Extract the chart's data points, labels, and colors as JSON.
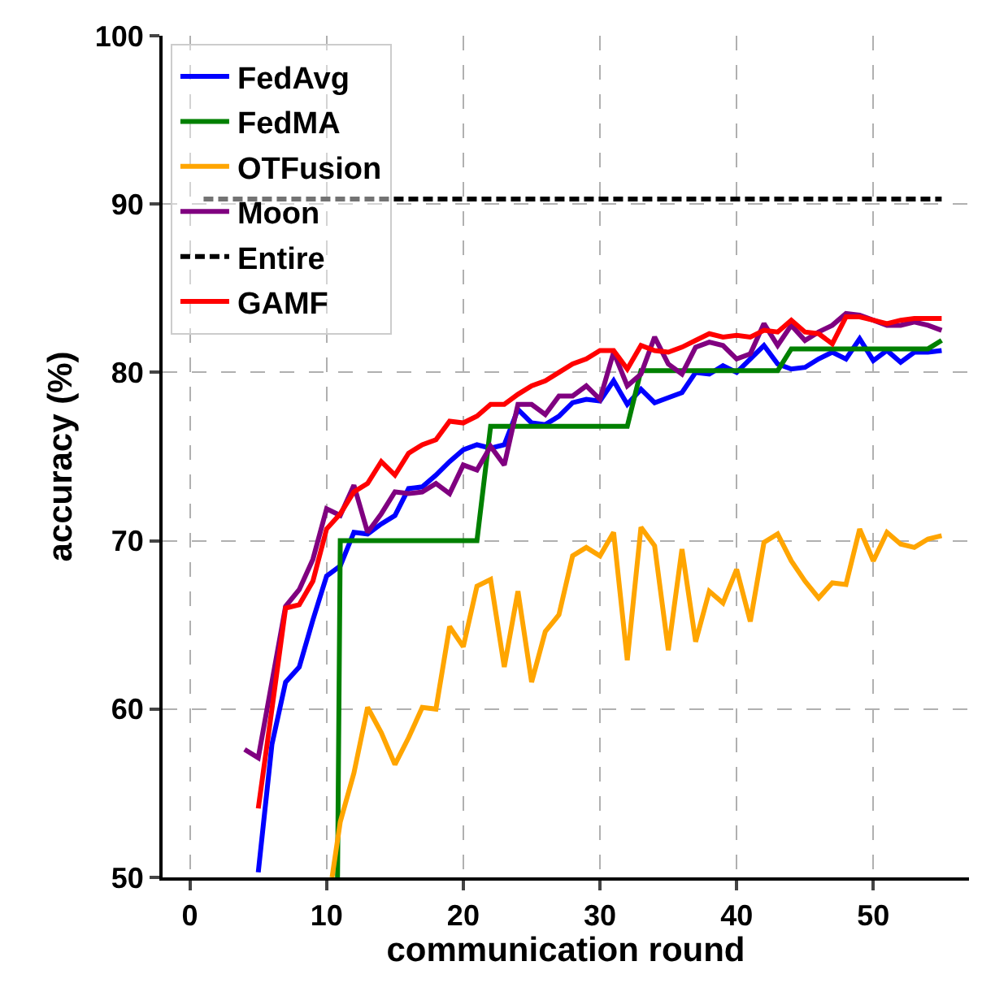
{
  "chart_data": {
    "type": "line",
    "xlabel": "communication round",
    "ylabel": "accuracy (%)",
    "xlim": [
      -2,
      57
    ],
    "xticks": [
      0,
      10,
      20,
      30,
      40,
      50
    ],
    "ylim": [
      50,
      100
    ],
    "yticks": [
      50,
      60,
      70,
      80,
      90,
      100
    ],
    "grid": true,
    "legend": "top left",
    "line_style": "solid",
    "marker": "none",
    "series": [
      {
        "name": "FedAvg",
        "color": "#0000ff",
        "x": [
          5,
          6,
          7,
          8,
          9,
          10,
          11,
          12,
          13,
          14,
          15,
          16,
          17,
          18,
          19,
          20,
          21,
          22,
          23,
          24,
          25,
          26,
          27,
          28,
          29,
          30,
          31,
          32,
          33,
          34,
          35,
          36,
          37,
          38,
          39,
          40,
          41,
          42,
          43,
          44,
          45,
          46,
          47,
          48,
          49,
          50,
          51,
          52,
          53,
          54,
          55
        ],
        "values": [
          50.3,
          57.9,
          61.6,
          62.5,
          65.3,
          67.9,
          68.5,
          70.5,
          70.4,
          71,
          71.5,
          73.1,
          73.2,
          73.9,
          74.7,
          75.4,
          75.7,
          75.5,
          75.7,
          77.8,
          77,
          76.9,
          77.4,
          78.2,
          78.4,
          78.3,
          79.5,
          78.1,
          79,
          78.2,
          78.5,
          78.8,
          80,
          79.9,
          80.4,
          80,
          80.8,
          81.6,
          80.5,
          80.2,
          80.3,
          80.8,
          81.2,
          80.8,
          82,
          80.7,
          81.3,
          80.6,
          81.2,
          81.2,
          81.3
        ]
      },
      {
        "name": "FedMA",
        "color": "#008000",
        "x": [
          10.8,
          11,
          21,
          22,
          32,
          33,
          43,
          44,
          54,
          55
        ],
        "values": [
          50,
          70,
          70,
          76.8,
          76.8,
          80.1,
          80.1,
          81.4,
          81.4,
          81.9
        ]
      },
      {
        "name": "OTFusion",
        "color": "#ffa500",
        "x": [
          10.4,
          11,
          12,
          13,
          14,
          15,
          16,
          17,
          18,
          19,
          20,
          21,
          22,
          23,
          24,
          25,
          26,
          27,
          28,
          29,
          30,
          31,
          32,
          33,
          34,
          35,
          36,
          37,
          38,
          39,
          40,
          41,
          42,
          43,
          44,
          45,
          46,
          47,
          48,
          49,
          50,
          51,
          52,
          53,
          54,
          55
        ],
        "values": [
          50,
          53.3,
          56.2,
          60.1,
          58.6,
          56.7,
          58.3,
          60.1,
          60,
          64.9,
          63.7,
          67.3,
          67.7,
          62.5,
          67,
          61.6,
          64.6,
          65.6,
          69.1,
          69.6,
          69.1,
          70.5,
          62.9,
          70.8,
          69.7,
          63.5,
          69.5,
          64,
          67,
          66.3,
          68.3,
          65.2,
          69.9,
          70.4,
          68.8,
          67.6,
          66.6,
          67.5,
          67.4,
          70.7,
          68.8,
          70.5,
          69.8,
          69.6,
          70.1,
          70.3
        ]
      },
      {
        "name": "Moon",
        "color": "#800080",
        "x": [
          4,
          5,
          6,
          7,
          8,
          9,
          10,
          11,
          12,
          13,
          14,
          15,
          16,
          17,
          18,
          19,
          20,
          21,
          22,
          23,
          24,
          25,
          26,
          27,
          28,
          29,
          30,
          31,
          32,
          33,
          34,
          35,
          36,
          37,
          38,
          39,
          40,
          41,
          42,
          43,
          44,
          45,
          46,
          47,
          48,
          49,
          50,
          51,
          52,
          53,
          54,
          55
        ],
        "values": [
          57.6,
          57.1,
          61.6,
          66.1,
          67.1,
          68.9,
          71.9,
          71.5,
          73.3,
          70.5,
          71.6,
          72.9,
          72.8,
          72.9,
          73.4,
          72.8,
          74.5,
          74.2,
          75.6,
          74.5,
          78.1,
          78.1,
          77.5,
          78.6,
          78.6,
          79.2,
          78.4,
          81.2,
          79.2,
          79.9,
          82.1,
          80.5,
          79.9,
          81.5,
          81.8,
          81.6,
          80.8,
          81.1,
          82.9,
          81.6,
          82.8,
          81.9,
          82.4,
          82.8,
          83.5,
          83.4,
          83.1,
          82.8,
          82.8,
          83,
          82.8,
          82.5
        ]
      },
      {
        "name": "Entire",
        "color": "#000000",
        "line_style": "dashed",
        "x": [
          1,
          55
        ],
        "values": [
          90.3,
          90.3
        ]
      },
      {
        "name": "GAMF",
        "color": "#ff0000",
        "x": [
          5,
          6,
          7,
          8,
          9,
          10,
          11,
          12,
          13,
          14,
          15,
          16,
          17,
          18,
          19,
          20,
          21,
          22,
          23,
          24,
          25,
          26,
          27,
          28,
          29,
          30,
          31,
          32,
          33,
          34,
          35,
          36,
          37,
          38,
          39,
          40,
          41,
          42,
          43,
          44,
          45,
          46,
          47,
          48,
          49,
          50,
          51,
          52,
          53,
          54,
          55
        ],
        "values": [
          54.1,
          60,
          66,
          66.2,
          67.6,
          70.7,
          71.6,
          72.9,
          73.4,
          74.7,
          73.9,
          75.2,
          75.7,
          76,
          77.1,
          77,
          77.4,
          78.1,
          78.1,
          78.7,
          79.2,
          79.5,
          80,
          80.5,
          80.8,
          81.3,
          81.3,
          80.2,
          81.6,
          81.3,
          81.2,
          81.5,
          81.9,
          82.3,
          82.1,
          82.2,
          82.1,
          82.5,
          82.4,
          83.1,
          82.4,
          82.3,
          81.7,
          83.3,
          83.3,
          83.1,
          82.9,
          83.1,
          83.2,
          83.2,
          83.2
        ]
      }
    ]
  }
}
